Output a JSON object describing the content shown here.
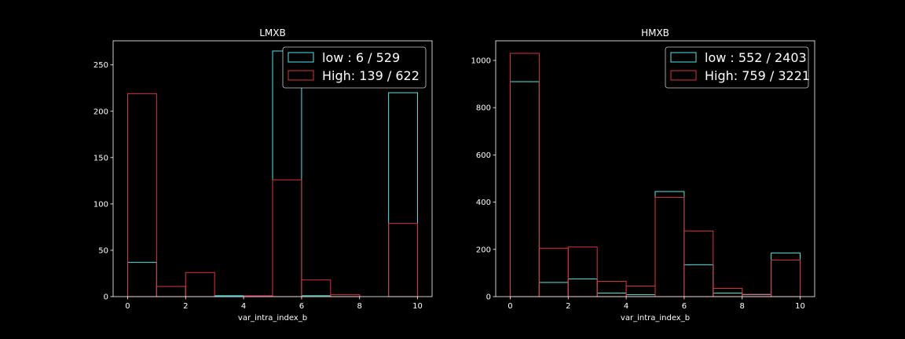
{
  "chart_data": [
    {
      "type": "histogram",
      "title": "LMXB",
      "xlabel": "var_intra_index_b",
      "ylabel": "",
      "xlim": [
        -0.5,
        10.5
      ],
      "ylim": [
        0,
        276
      ],
      "xticks": [
        0,
        2,
        4,
        6,
        8,
        10
      ],
      "yticks": [
        0,
        50,
        100,
        150,
        200,
        250
      ],
      "bin_edges": [
        0,
        1,
        2,
        3,
        4,
        5,
        6,
        7,
        8,
        9,
        10
      ],
      "legend_position": "upper right",
      "series": [
        {
          "name": "low : 6 / 529",
          "color": "#4fe6e6",
          "values": [
            37,
            11,
            0,
            1,
            0,
            265,
            1,
            0,
            0,
            220
          ]
        },
        {
          "name": "High: 139 / 622",
          "color": "#d9333f",
          "values": [
            219,
            11,
            26,
            0,
            1,
            126,
            18,
            2,
            0,
            79
          ]
        }
      ]
    },
    {
      "type": "histogram",
      "title": "HMXB",
      "xlabel": "var_intra_index_b",
      "ylabel": "",
      "xlim": [
        -0.5,
        10.5
      ],
      "ylim": [
        0,
        1083
      ],
      "xticks": [
        0,
        2,
        4,
        6,
        8,
        10
      ],
      "yticks": [
        0,
        200,
        400,
        600,
        800,
        1000
      ],
      "bin_edges": [
        0,
        1,
        2,
        3,
        4,
        5,
        6,
        7,
        8,
        9,
        10
      ],
      "legend_position": "upper right",
      "series": [
        {
          "name": "low : 552 / 2403",
          "color": "#4fe6e6",
          "values": [
            910,
            60,
            75,
            15,
            8,
            445,
            135,
            15,
            8,
            185
          ]
        },
        {
          "name": "High: 759 / 3221",
          "color": "#d9333f",
          "values": [
            1030,
            205,
            210,
            65,
            45,
            420,
            278,
            35,
            10,
            155
          ]
        }
      ]
    }
  ]
}
